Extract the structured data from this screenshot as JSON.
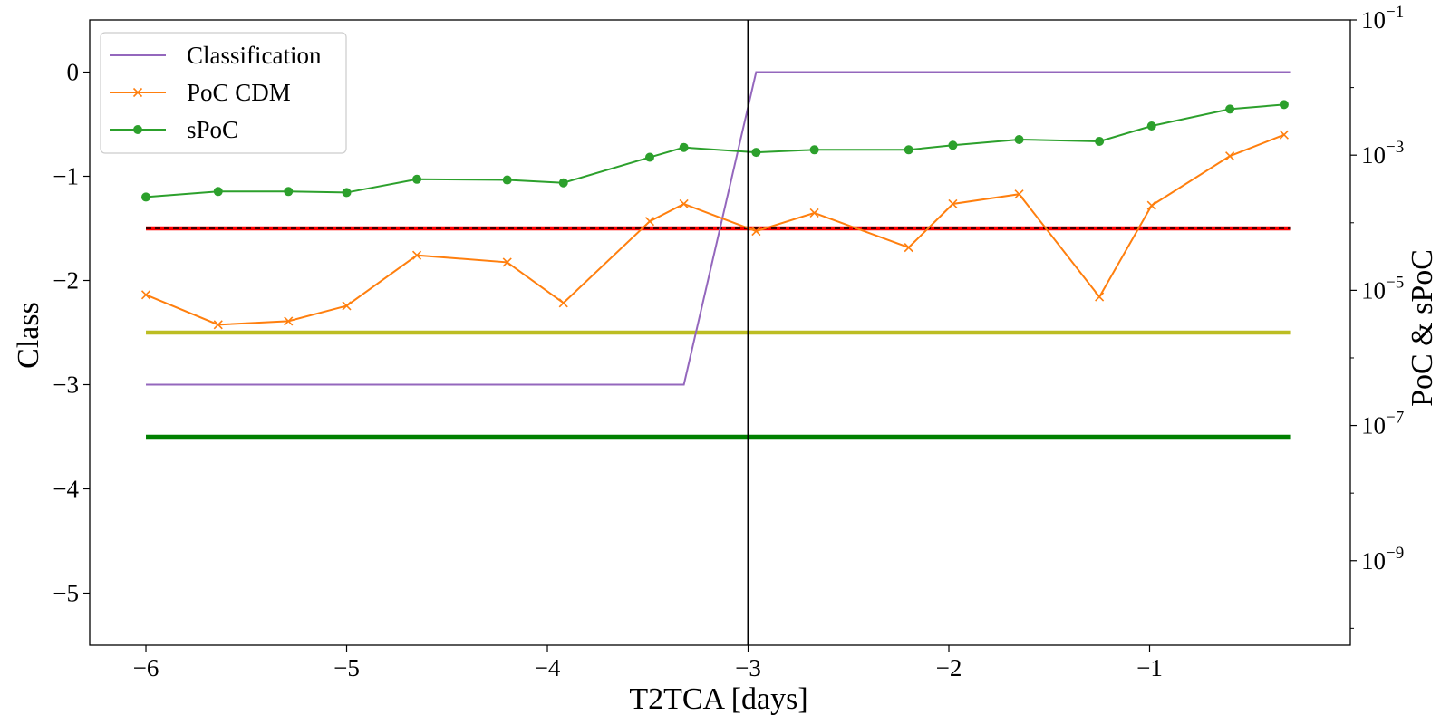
{
  "chart_data": {
    "type": "line",
    "xlabel": "T2TCA [days]",
    "ylabel_left": "Class",
    "ylabel_right": "PoC & sPoC",
    "xlim": [
      -6.28,
      -0.0
    ],
    "xticks": [
      -6,
      -5,
      -4,
      -3,
      -2,
      -1
    ],
    "xtick_labels": [
      "−6",
      "−5",
      "−4",
      "−3",
      "−2",
      "−1"
    ],
    "ylim_left": [
      -5.5,
      0.5
    ],
    "yticks_left": [
      0,
      -1,
      -2,
      -3,
      -4,
      -5
    ],
    "ytick_labels_left": [
      "0",
      "−1",
      "−2",
      "−3",
      "−4",
      "−5"
    ],
    "right_axis_scale": "log",
    "ylim_right_log10": [
      -10.25,
      -1.0
    ],
    "yticks_right_log10": [
      -1,
      -3,
      -5,
      -7,
      -9
    ],
    "ytick_labels_right": [
      {
        "base": "10",
        "exp": "−1"
      },
      {
        "base": "10",
        "exp": "−3"
      },
      {
        "base": "10",
        "exp": "−5"
      },
      {
        "base": "10",
        "exp": "−7"
      },
      {
        "base": "10",
        "exp": "−9"
      }
    ],
    "legend": {
      "placement": "top-left",
      "entries": [
        {
          "label": "Classification",
          "color": "#9467bd",
          "marker": "none"
        },
        {
          "label": "PoC CDM",
          "color": "#ff7f0e",
          "marker": "x"
        },
        {
          "label": "sPoC",
          "color": "#2ca02c",
          "marker": "o"
        }
      ]
    },
    "series": [
      {
        "name": "Classification",
        "axis": "left",
        "color": "#9467bd",
        "x": [
          -6.0,
          -3.32,
          -2.96,
          -0.3
        ],
        "y": [
          -3,
          -3,
          0,
          0
        ]
      },
      {
        "name": "PoC CDM",
        "axis": "right",
        "color": "#ff7f0e",
        "marker": "x",
        "x": [
          -6.0,
          -5.64,
          -5.29,
          -5.0,
          -4.65,
          -4.2,
          -3.92,
          -3.49,
          -3.32,
          -2.96,
          -2.67,
          -2.2,
          -1.98,
          -1.65,
          -1.25,
          -0.99,
          -0.6,
          -0.33
        ],
        "y": [
          8.6e-06,
          3.1e-06,
          3.5e-06,
          5.9e-06,
          3.3e-05,
          2.6e-05,
          6.5e-06,
          0.000105,
          0.00019,
          7.5e-05,
          0.00014,
          4.3e-05,
          0.00019,
          0.000265,
          8e-06,
          0.00018,
          0.00097,
          0.002
        ]
      },
      {
        "name": "sPoC",
        "axis": "right",
        "color": "#2ca02c",
        "marker": "o",
        "x": [
          -6.0,
          -5.64,
          -5.29,
          -5.0,
          -4.65,
          -4.2,
          -3.92,
          -3.49,
          -3.32,
          -2.96,
          -2.67,
          -2.2,
          -1.98,
          -1.65,
          -1.25,
          -0.99,
          -0.6,
          -0.33
        ],
        "y": [
          0.00024,
          0.00029,
          0.00029,
          0.00028,
          0.00044,
          0.00043,
          0.00039,
          0.00093,
          0.0013,
          0.0011,
          0.0012,
          0.0012,
          0.0014,
          0.0017,
          0.0016,
          0.0027,
          0.0048,
          0.0056
        ]
      }
    ],
    "threshold_lines": [
      {
        "axis": "left",
        "y": -1.5,
        "x_range": [
          -6.0,
          -0.3
        ],
        "color": "#ff0000",
        "style": "solid-red-with-black-dash"
      },
      {
        "axis": "left",
        "y": -2.5,
        "x_range": [
          -6.0,
          -0.3
        ],
        "color": "#bcbd22",
        "style": "solid"
      },
      {
        "axis": "left",
        "y": -3.5,
        "x_range": [
          -6.0,
          -0.3
        ],
        "color": "#008000",
        "style": "solid"
      }
    ],
    "vertical_line": {
      "x": -3.0,
      "color": "#000000"
    }
  }
}
